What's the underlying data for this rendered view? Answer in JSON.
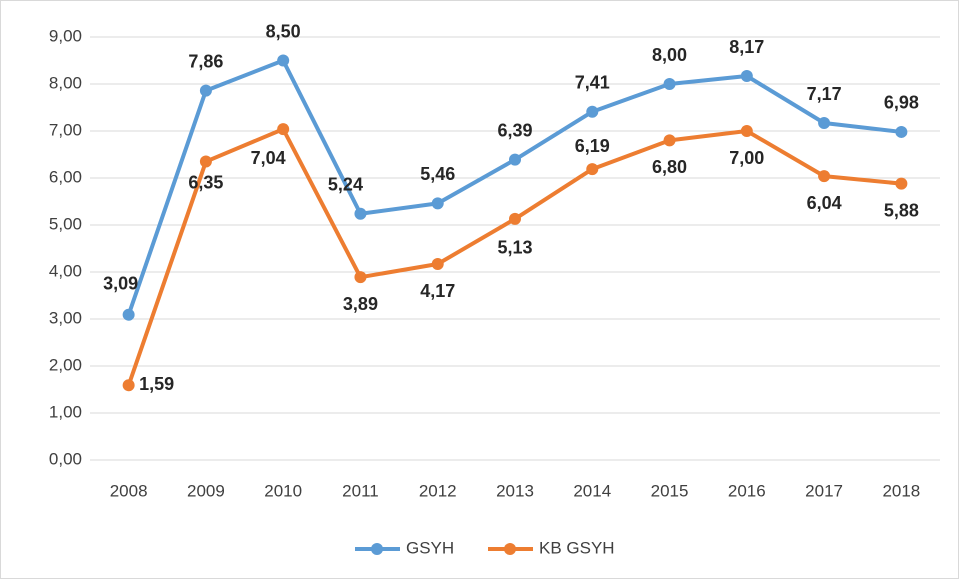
{
  "chart_data": {
    "type": "line",
    "categories": [
      "2008",
      "2009",
      "2010",
      "2011",
      "2012",
      "2013",
      "2014",
      "2015",
      "2016",
      "2017",
      "2018"
    ],
    "series": [
      {
        "name": "GSYH",
        "color": "#5b9bd5",
        "values": [
          3.09,
          7.86,
          8.5,
          5.24,
          5.46,
          6.39,
          7.41,
          8.0,
          8.17,
          7.17,
          6.98
        ],
        "value_labels": [
          "3,09",
          "7,86",
          "8,50",
          "5,24",
          "5,46",
          "6,39",
          "7,41",
          "8,00",
          "8,17",
          "7,17",
          "6,98"
        ]
      },
      {
        "name": "KB GSYH",
        "color": "#ed7d31",
        "values": [
          1.59,
          6.35,
          7.04,
          3.89,
          4.17,
          5.13,
          6.19,
          6.8,
          7.0,
          6.04,
          5.88
        ],
        "value_labels": [
          "1,59",
          "6,35",
          "7,04",
          "3,89",
          "4,17",
          "5,13",
          "6,19",
          "6,80",
          "7,00",
          "6,04",
          "5,88"
        ]
      }
    ],
    "ylim": [
      0,
      9
    ],
    "yticks": [
      {
        "value": 0,
        "label": "0,00"
      },
      {
        "value": 1,
        "label": "1,00"
      },
      {
        "value": 2,
        "label": "2,00"
      },
      {
        "value": 3,
        "label": "3,00"
      },
      {
        "value": 4,
        "label": "4,00"
      },
      {
        "value": 5,
        "label": "5,00"
      },
      {
        "value": 6,
        "label": "6,00"
      },
      {
        "value": 7,
        "label": "7,00"
      },
      {
        "value": 8,
        "label": "8,00"
      },
      {
        "value": 9,
        "label": "9,00"
      }
    ],
    "grid": true,
    "legend": "bottom"
  }
}
